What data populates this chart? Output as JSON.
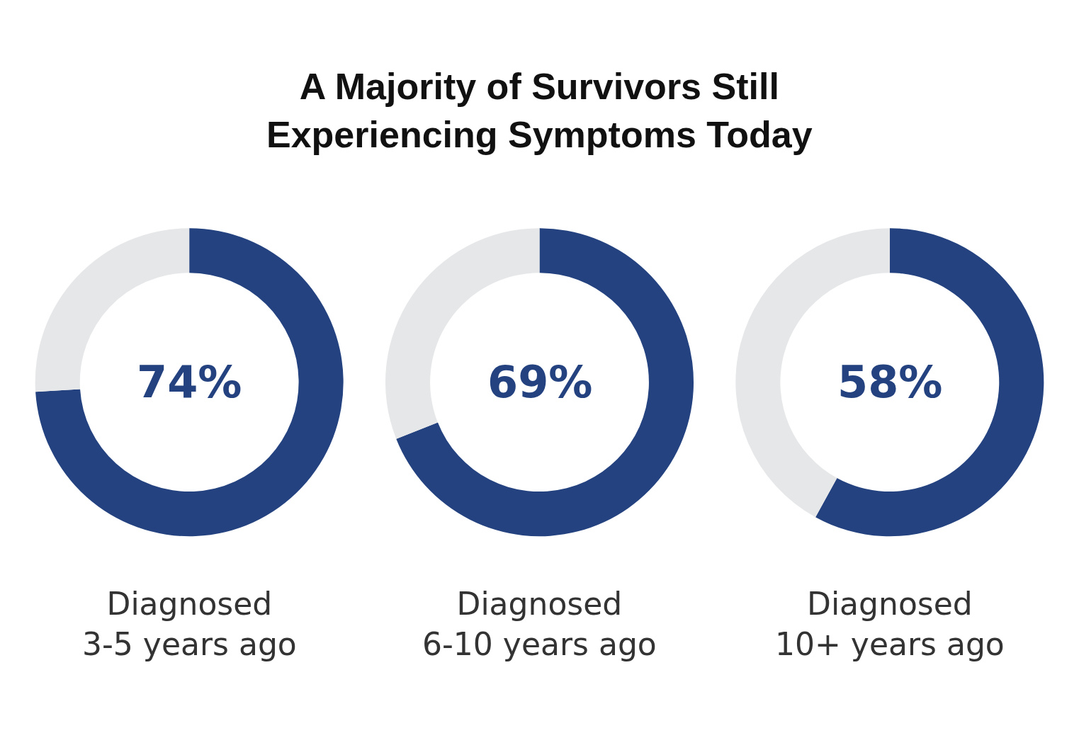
{
  "chart_data": [
    {
      "type": "donut",
      "title": "A Majority of Survivors Still\nExperiencing Symptoms Today",
      "xlabel": "Diagnosed\n3-5 years ago",
      "categories": [
        null,
        null
      ],
      "values": [
        74,
        26
      ],
      "colors": [
        "#23427f",
        "#e6e7e8"
      ],
      "value_labels": [
        "74%",
        null
      ]
    },
    {
      "type": "donut",
      "xlabel": "Diagnosed\n6-10 years ago",
      "categories": [
        null,
        null
      ],
      "values": [
        69,
        31
      ],
      "colors": [
        "#23427f",
        "#e6e7e8"
      ],
      "value_labels": [
        "69%",
        null
      ]
    },
    {
      "type": "donut",
      "xlabel": "Diagnosed\n10+ years ago",
      "categories": [
        null,
        null
      ],
      "values": [
        58,
        42
      ],
      "colors": [
        "#23427f",
        "#e6e7e8"
      ],
      "value_labels": [
        "58%",
        null
      ]
    }
  ]
}
